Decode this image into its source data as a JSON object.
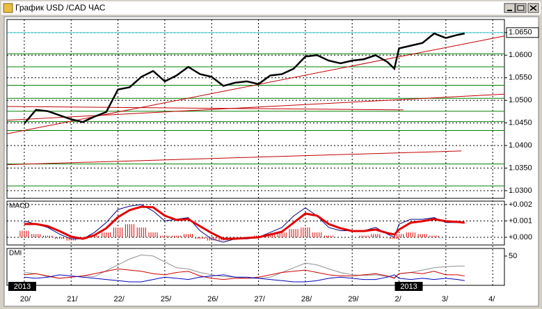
{
  "window": {
    "title": "График USD /CAD ЧАС"
  },
  "chart_data": [
    {
      "type": "line",
      "x": [
        0,
        0.25,
        0.5,
        0.75,
        1,
        1.25,
        1.5,
        1.75,
        2,
        2.25,
        2.5,
        2.75,
        3,
        3.25,
        3.5,
        3.75,
        4,
        4.25,
        4.5,
        4.75,
        5,
        5.25,
        5.5,
        5.75,
        6,
        6.25,
        6.5,
        6.75,
        7,
        7.25,
        7.5,
        7.75,
        7.9,
        8,
        8.25,
        8.5,
        8.75,
        9,
        9.25,
        9.4
      ],
      "xlim": [
        -0.37,
        10.25
      ],
      "xticks": [
        {
          "value": 0,
          "label": "20/"
        },
        {
          "value": 1,
          "label": "21/"
        },
        {
          "value": 2,
          "label": "22/"
        },
        {
          "value": 3,
          "label": "25/"
        },
        {
          "value": 4,
          "label": "26/"
        },
        {
          "value": 5,
          "label": "27/"
        },
        {
          "value": 6,
          "label": "28/"
        },
        {
          "value": 7,
          "label": "29/"
        },
        {
          "value": 8,
          "label": "2/"
        },
        {
          "value": 9,
          "label": "3/"
        },
        {
          "value": 10,
          "label": "4/"
        }
      ],
      "annotations": [
        "2013",
        "2013"
      ],
      "ylim": [
        1.0283,
        1.0679
      ],
      "yticks": [
        {
          "value": 1.065,
          "label": "1.0650"
        },
        {
          "value": 1.06,
          "label": "1.0600"
        },
        {
          "value": 1.055,
          "label": "1.0550"
        },
        {
          "value": 1.05,
          "label": "1.0500"
        },
        {
          "value": 1.045,
          "label": "1.0450"
        },
        {
          "value": 1.04,
          "label": "1.0400"
        },
        {
          "value": 1.035,
          "label": "1.0350"
        },
        {
          "value": 1.03,
          "label": "1.0300"
        }
      ],
      "grid": true,
      "series": [
        {
          "color": "#000000",
          "values": [
            1.04485,
            1.0479,
            1.0476,
            1.0467,
            1.0458,
            1.0452,
            1.0464,
            1.0474,
            1.0524,
            1.0529,
            1.0552,
            1.0565,
            1.0542,
            1.0555,
            1.0574,
            1.0558,
            1.0552,
            1.0532,
            1.0539,
            1.0542,
            1.0536,
            1.0555,
            1.0558,
            1.057,
            1.0597,
            1.06,
            1.0588,
            1.0582,
            1.0588,
            1.0591,
            1.06,
            1.0585,
            1.057,
            1.0615,
            1.0621,
            1.0627,
            1.0648,
            1.0638,
            1.0645,
            1.0648
          ]
        }
      ],
      "price_line": {
        "value": 1.065,
        "color": "#33cccc"
      },
      "levels": {
        "color": "#008000",
        "values": [
          1.0603,
          1.05742,
          1.05333,
          1.05045,
          1.04758,
          1.0453,
          1.04333,
          1.03591,
          1.03106
        ]
      },
      "trendlines": [
        {
          "color": "#c00000",
          "x": [
            -0.37,
            10.25
          ],
          "values": [
            1.04258,
            1.06424
          ]
        },
        {
          "color": "#c00000",
          "x": [
            -0.37,
            10.25
          ],
          "values": [
            1.04561,
            1.05136
          ]
        },
        {
          "color": "#c00000",
          "x": [
            -0.37,
            8.09
          ],
          "values": [
            1.04864,
            1.04788
          ]
        },
        {
          "color": "#c00000",
          "x": [
            -0.37,
            9.33
          ],
          "values": [
            1.03576,
            1.03879
          ]
        }
      ]
    },
    {
      "type": "line",
      "title": "MACD",
      "ylim": [
        -0.00047,
        0.00221
      ],
      "yticks": [
        {
          "value": 0.002,
          "label": "+0.002"
        },
        {
          "value": 0.001,
          "label": "+0.001"
        },
        {
          "value": 0,
          "label": "+0.000"
        }
      ],
      "series": [
        {
          "color": "#000080",
          "values": [
            0.001,
            0.0008,
            0.0006,
            0.0002,
            -0.0001,
            -0.0001,
            0.0003,
            0.0009,
            0.0017,
            0.0019,
            0.002,
            0.0016,
            0.001,
            0.0011,
            0.0012,
            0.0004,
            -0.0001,
            -0.0003,
            -0.0001,
            -0.0001,
            0,
            0.0003,
            0.0006,
            0.0013,
            0.0018,
            0.0013,
            0.0006,
            0.0004,
            0.0004,
            0.0004,
            0.0006,
            0.0002,
            0,
            0.0008,
            0.0011,
            0.0011,
            0.0012,
            0.0009,
            0.0009,
            0.0009
          ]
        },
        {
          "color": "#e00000",
          "values": [
            0.00081,
            0.00081,
            0.00068,
            0.00038,
            4e-05,
            -9e-05,
            0.00013,
            0.00055,
            0.00123,
            0.00166,
            0.00187,
            0.00183,
            0.00132,
            0.00106,
            0.00111,
            0.00068,
            0.00026,
            -9e-05,
            -9e-05,
            -4e-05,
            0,
            0.00017,
            0.00034,
            0.00089,
            0.00145,
            0.00132,
            0.00081,
            0.00055,
            0.00038,
            0.00038,
            0.00047,
            0.00026,
            0.00017,
            0.00047,
            0.00089,
            0.00098,
            0.00111,
            0.00098,
            0.00094,
            0.00089
          ]
        },
        {
          "color": "#e00000",
          "values": [
            0.0004,
            0.0002,
            0.0001,
            -0.0001,
            -0.0002,
            -0.0001,
            0.0001,
            0.0003,
            0.0006,
            0.0008,
            0.0006,
            0.0003,
            0.0001,
            0.0001,
            0.0002,
            -0.0001,
            -0.0002,
            -0.0002,
            -0.0001,
            0,
            0.0001,
            0.0002,
            0.0003,
            0.0005,
            0.0006,
            0.0003,
            0.0001,
            0,
            0,
            0.0001,
            0.0002,
            0,
            -0.0001,
            0.0002,
            0.0003,
            0.0002,
            0.0001,
            0,
            0,
            0
          ]
        }
      ]
    },
    {
      "type": "line",
      "title": "DMI",
      "ylim": [
        0,
        63
      ],
      "yticks": [
        50
      ],
      "series": [
        {
          "color": "#909090",
          "values": [
            22,
            20,
            15,
            12,
            14,
            16,
            15,
            25,
            35,
            45,
            52,
            50,
            40,
            30,
            28,
            22,
            18,
            15,
            14,
            12,
            12,
            14,
            22,
            30,
            38,
            35,
            28,
            22,
            18,
            17,
            18,
            15,
            14,
            20,
            22,
            26,
            30,
            32,
            33,
            33
          ]
        },
        {
          "color": "#d00000",
          "values": [
            18,
            20,
            16,
            12,
            14,
            16,
            20,
            24,
            28,
            26,
            24,
            20,
            18,
            22,
            24,
            16,
            12,
            10,
            12,
            12,
            14,
            18,
            22,
            24,
            26,
            22,
            18,
            16,
            16,
            18,
            20,
            16,
            12,
            20,
            22,
            20,
            24,
            18,
            18,
            16
          ]
        },
        {
          "color": "#0000c0",
          "values": [
            14,
            12,
            14,
            18,
            16,
            14,
            12,
            10,
            8,
            6,
            6,
            10,
            14,
            12,
            10,
            14,
            16,
            18,
            14,
            14,
            12,
            10,
            8,
            6,
            6,
            8,
            12,
            14,
            12,
            10,
            10,
            14,
            18,
            12,
            10,
            12,
            10,
            12,
            10,
            8
          ]
        }
      ]
    }
  ]
}
